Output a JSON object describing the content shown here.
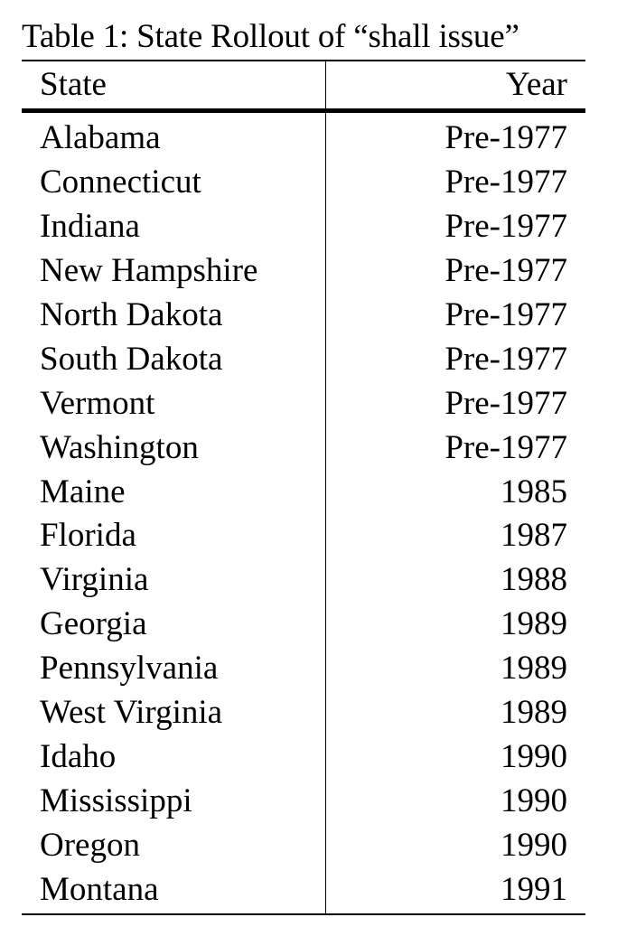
{
  "table": {
    "caption": "Table 1: State Rollout of “shall issue”",
    "headers": {
      "state": "State",
      "year": "Year"
    },
    "rows": [
      {
        "state": "Alabama",
        "year": "Pre-1977"
      },
      {
        "state": "Connecticut",
        "year": "Pre-1977"
      },
      {
        "state": "Indiana",
        "year": "Pre-1977"
      },
      {
        "state": "New Hampshire",
        "year": "Pre-1977"
      },
      {
        "state": "North Dakota",
        "year": "Pre-1977"
      },
      {
        "state": "South Dakota",
        "year": "Pre-1977"
      },
      {
        "state": "Vermont",
        "year": "Pre-1977"
      },
      {
        "state": "Washington",
        "year": "Pre-1977"
      },
      {
        "state": "Maine",
        "year": "1985"
      },
      {
        "state": "Florida",
        "year": "1987"
      },
      {
        "state": "Virginia",
        "year": "1988"
      },
      {
        "state": "Georgia",
        "year": "1989"
      },
      {
        "state": "Pennsylvania",
        "year": "1989"
      },
      {
        "state": "West Virginia",
        "year": "1989"
      },
      {
        "state": "Idaho",
        "year": "1990"
      },
      {
        "state": "Mississippi",
        "year": "1990"
      },
      {
        "state": "Oregon",
        "year": "1990"
      },
      {
        "state": "Montana",
        "year": "1991"
      }
    ]
  }
}
